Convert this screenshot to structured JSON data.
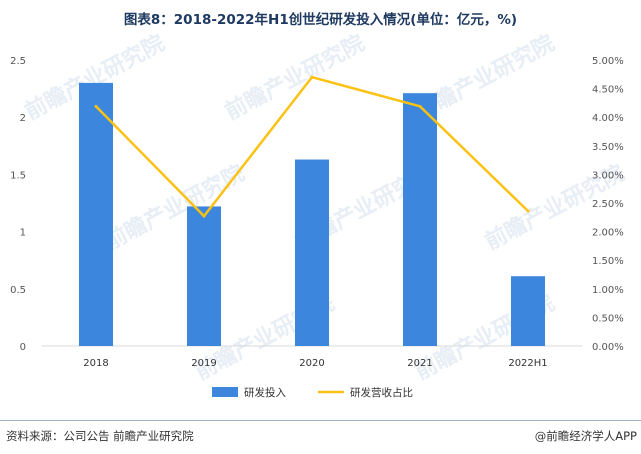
{
  "title": "图表8：2018-2022年H1创世纪研发投入情况(单位：亿元，%)",
  "source": "资料来源：公司公告 前瞻产业研究院",
  "brand": "@前瞻经济学人APP",
  "watermark": "前瞻产业研究院",
  "colors": {
    "bar": "#3c86dd",
    "line": "#fbc113",
    "grid": "#d9d9d9"
  },
  "chart_data": {
    "type": "bar",
    "categories": [
      "2018",
      "2019",
      "2020",
      "2021",
      "2022H1"
    ],
    "series": [
      {
        "name": "研发投入",
        "type": "bar",
        "axis": "left",
        "values": [
          2.3,
          1.22,
          1.63,
          2.21,
          0.61
        ]
      },
      {
        "name": "研发营收占比",
        "type": "line",
        "axis": "right",
        "values": [
          0.0419,
          0.0227,
          0.047,
          0.0419,
          0.0236
        ]
      }
    ],
    "y_left": {
      "lim": [
        0,
        2.5
      ],
      "ticks": [
        "0",
        "0.5",
        "1",
        "1.5",
        "2",
        "2.5"
      ]
    },
    "y_right": {
      "lim": [
        0,
        0.05
      ],
      "ticks": [
        "0.00%",
        "0.50%",
        "1.00%",
        "1.50%",
        "2.00%",
        "2.50%",
        "3.00%",
        "3.50%",
        "4.00%",
        "4.50%",
        "5.00%"
      ]
    },
    "grid": false,
    "legend_position": "bottom"
  }
}
